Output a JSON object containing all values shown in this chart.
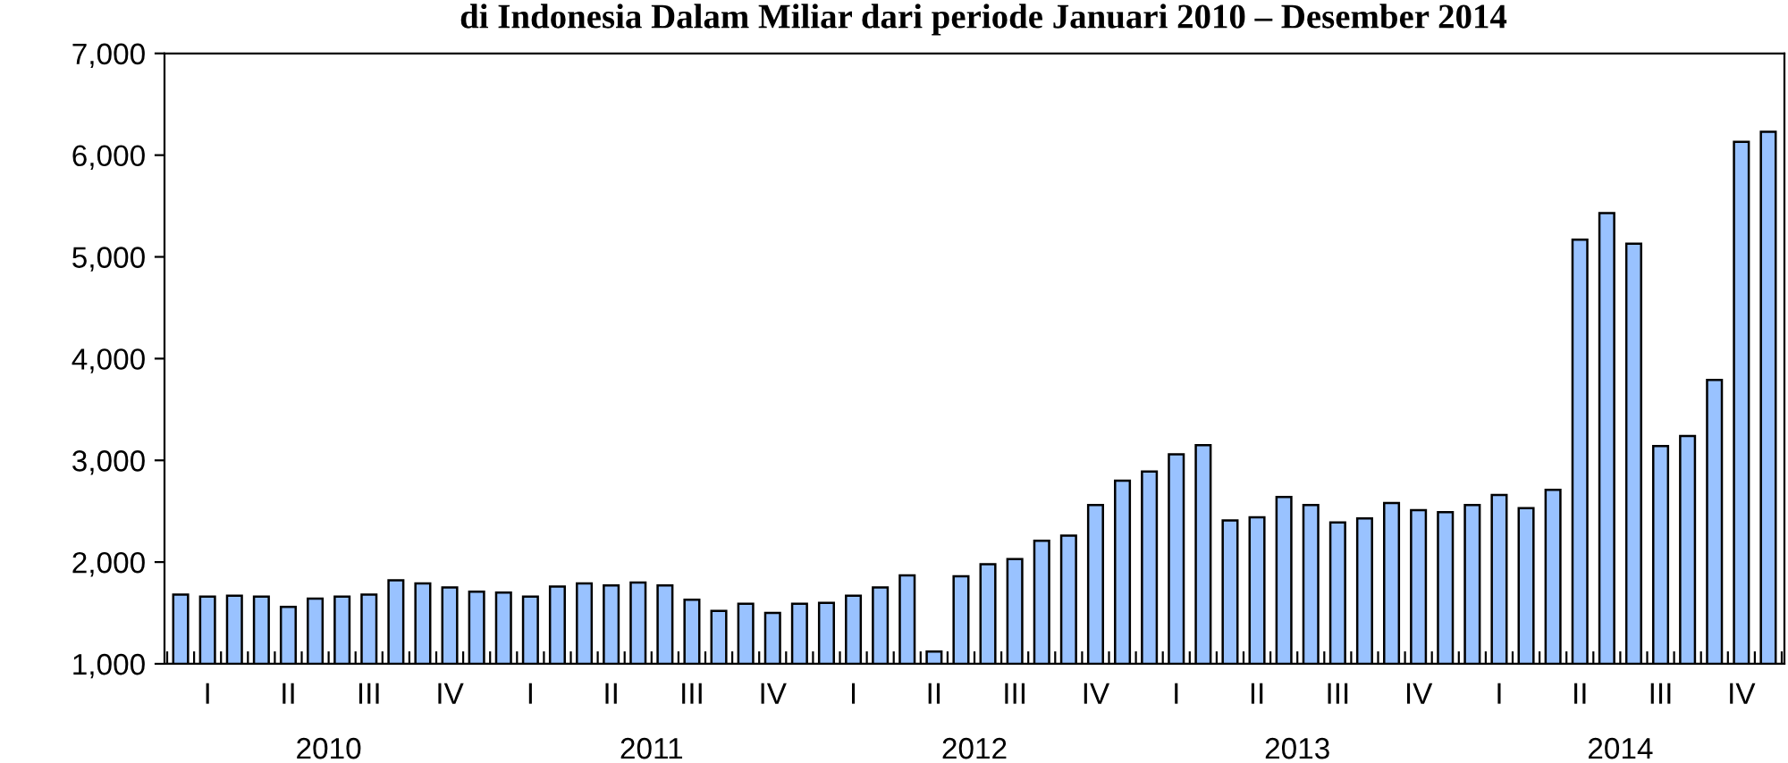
{
  "chart_data": {
    "type": "bar",
    "title": "di Indonesia Dalam Miliar dari periode Januari 2010 – Desember 2014",
    "categories": [
      null,
      "I",
      null,
      null,
      "II",
      null,
      null,
      "III",
      null,
      null,
      "IV",
      null,
      null,
      "I",
      null,
      null,
      "II",
      null,
      null,
      "III",
      null,
      null,
      "IV",
      null,
      null,
      "I",
      null,
      null,
      "II",
      null,
      null,
      "III",
      null,
      null,
      "IV",
      null,
      null,
      "I",
      null,
      null,
      "II",
      null,
      null,
      "III",
      null,
      null,
      "IV",
      null,
      null,
      "I",
      null,
      null,
      "II",
      null,
      null,
      "III",
      null,
      null,
      "IV",
      null
    ],
    "values": [
      1680,
      1660,
      1670,
      1660,
      1560,
      1640,
      1660,
      1680,
      1820,
      1790,
      1750,
      1710,
      1700,
      1660,
      1760,
      1790,
      1770,
      1800,
      1770,
      1630,
      1520,
      1590,
      1500,
      1590,
      1600,
      1670,
      1750,
      1870,
      1120,
      1860,
      1980,
      2030,
      2210,
      2260,
      2560,
      2800,
      2890,
      3060,
      3150,
      2410,
      2440,
      2640,
      2560,
      2390,
      2430,
      2580,
      2510,
      2490,
      2560,
      2660,
      2530,
      2710,
      5170,
      5430,
      5130,
      3140,
      3240,
      3790,
      6130,
      6230
    ],
    "color": "#99c2ff",
    "ylim": [
      1000,
      7000
    ],
    "yticks": [
      {
        "value": 1000,
        "label": "1,000"
      },
      {
        "value": 2000,
        "label": "2,000"
      },
      {
        "value": 3000,
        "label": "3,000"
      },
      {
        "value": 4000,
        "label": "4,000"
      },
      {
        "value": 5000,
        "label": "5,000"
      },
      {
        "value": 6000,
        "label": "6,000"
      },
      {
        "value": 7000,
        "label": "7,000"
      }
    ],
    "annotations": [
      "2010",
      "2011",
      "2012",
      "2013",
      "2014"
    ],
    "grid": false
  }
}
